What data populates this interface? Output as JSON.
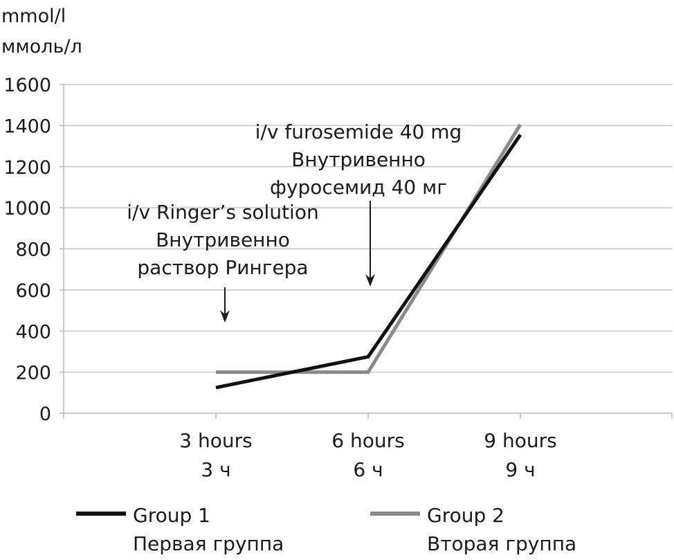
{
  "chart_data": {
    "type": "line",
    "ylabel_lines": [
      "mmol/l",
      "ммоль/л"
    ],
    "ylim": [
      0,
      1600
    ],
    "yticks": [
      0,
      200,
      400,
      600,
      800,
      1000,
      1200,
      1400,
      1600
    ],
    "categories": [
      {
        "en": "3 hours",
        "ru": "3 ч"
      },
      {
        "en": "6 hours",
        "ru": "6 ч"
      },
      {
        "en": "9 hours",
        "ru": "9 ч"
      }
    ],
    "grid": true,
    "legend_position": "bottom",
    "series": [
      {
        "name_en": "Group 1",
        "name_ru": "Первая группа",
        "color": "#111111",
        "values": [
          125,
          275,
          1355
        ]
      },
      {
        "name_en": "Group 2",
        "name_ru": "Вторая группа",
        "color": "#8a8a8a",
        "values": [
          200,
          200,
          1405
        ]
      }
    ],
    "annotations": [
      {
        "lines": [
          "i/v Ringer’s solution",
          "Внутривенно",
          "раствор Рингера"
        ],
        "category_index": 0
      },
      {
        "lines": [
          "i/v furosemide 40 mg",
          "Внутривенно",
          "фуросемид 40 мг"
        ],
        "category_index": 1
      }
    ]
  }
}
